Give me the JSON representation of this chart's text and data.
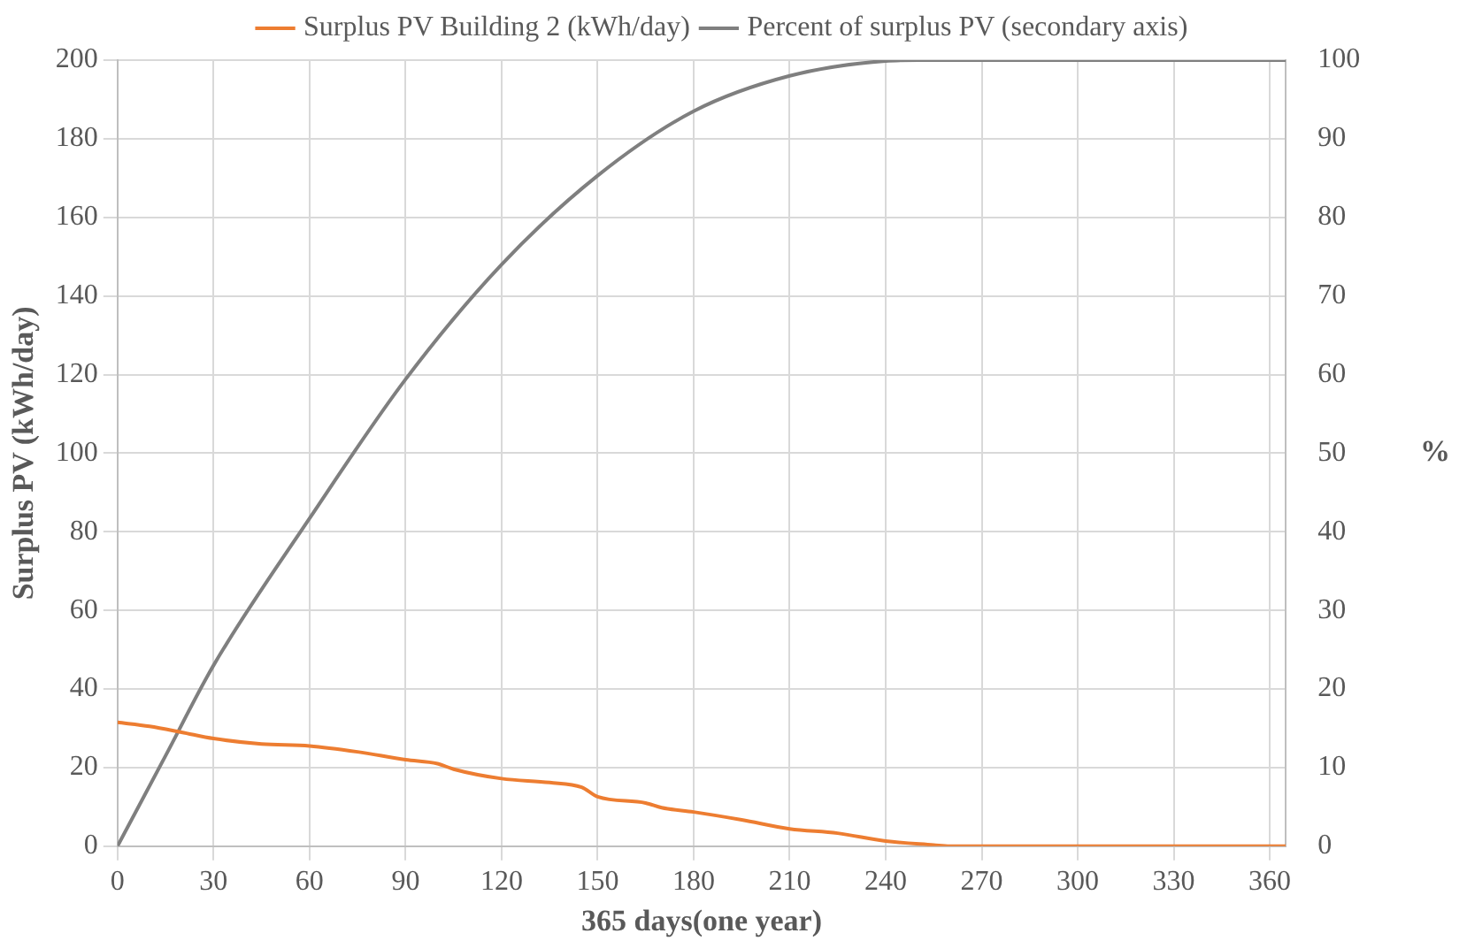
{
  "chart_data": {
    "type": "line",
    "xlabel": "365 days(one year)",
    "ylabel": "Surplus PV (kWh/day)",
    "y2label": "%",
    "xlim": [
      0,
      365
    ],
    "xticks": [
      0,
      30,
      60,
      90,
      120,
      150,
      180,
      210,
      240,
      270,
      300,
      330,
      360
    ],
    "ylim": [
      0,
      200
    ],
    "yticks": [
      0,
      20,
      40,
      60,
      80,
      100,
      120,
      140,
      160,
      180,
      200
    ],
    "y2lim": [
      0,
      100
    ],
    "y2ticks": [
      0,
      10,
      20,
      30,
      40,
      50,
      60,
      70,
      80,
      90,
      100
    ],
    "grid": true,
    "legend": "top",
    "marker": "none",
    "line_style": "solid",
    "series": [
      {
        "name": "Surplus PV Building 2 (kWh/day)",
        "color": "#ed7d31",
        "x": [
          0,
          10,
          20,
          30,
          45,
          60,
          75,
          90,
          100,
          105,
          120,
          135,
          145,
          150,
          165,
          170,
          180,
          195,
          210,
          225,
          240,
          255,
          260,
          300,
          365
        ],
        "values": [
          31.5,
          30.5,
          29,
          27.4,
          26,
          25.5,
          24,
          22,
          21,
          19.6,
          17.2,
          16.2,
          15,
          12.6,
          11,
          9.8,
          8.7,
          6.7,
          4.4,
          3.3,
          1.3,
          0.3,
          0,
          0,
          0
        ]
      },
      {
        "name": "Percent of surplus PV (secondary axis)",
        "color": "#7f7f7f",
        "axis": "y2",
        "x": [
          0,
          15,
          30,
          60,
          90,
          120,
          150,
          180,
          210,
          240,
          250,
          300,
          365
        ],
        "values": [
          0,
          11.5,
          23,
          41.7,
          59.4,
          74,
          85.3,
          93.5,
          98,
          99.9,
          100,
          100,
          100
        ]
      }
    ]
  }
}
